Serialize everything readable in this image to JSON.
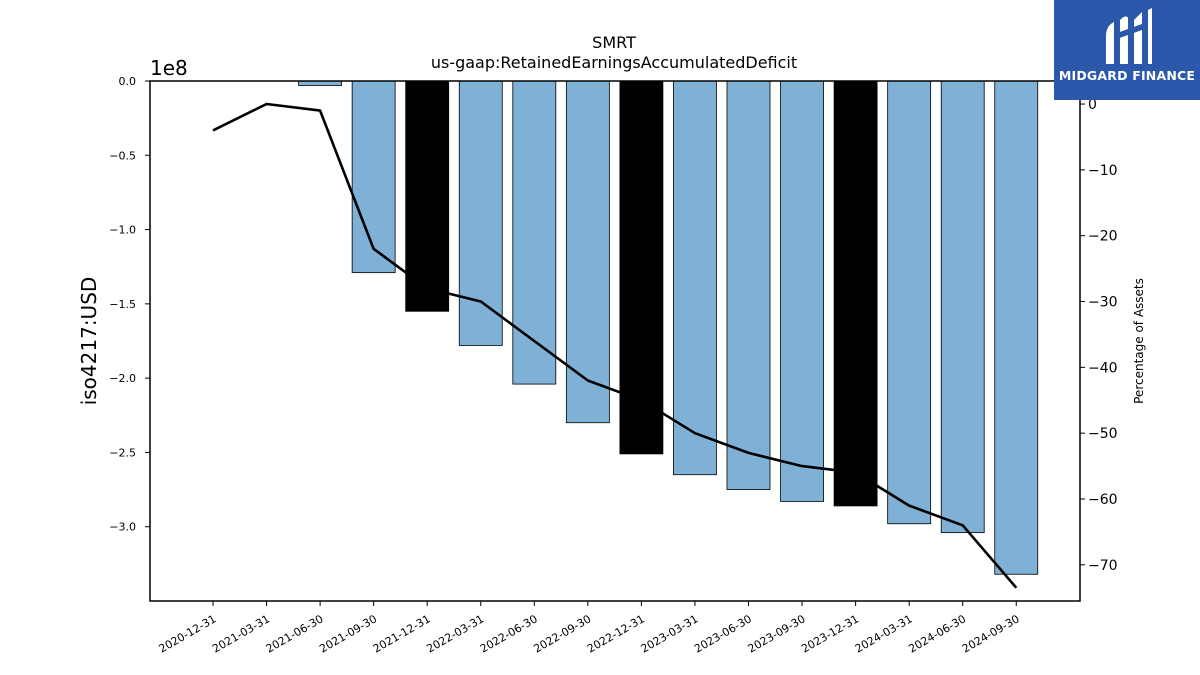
{
  "chart_data": {
    "type": "bar",
    "title": "SMRT",
    "subtitle": "us-gaap:RetainedEarningsAccumulatedDeficit",
    "ylabel": "iso4217:USD",
    "y_offset_label": "1e8",
    "y2label": "Percentage of Assets",
    "categories": [
      "2020-12-31",
      "2021-03-31",
      "2021-06-30",
      "2021-09-30",
      "2021-12-31",
      "2022-03-31",
      "2022-06-30",
      "2022-09-30",
      "2022-12-31",
      "2023-03-31",
      "2023-06-30",
      "2023-09-30",
      "2023-12-31",
      "2024-03-31",
      "2024-06-30",
      "2024-09-30"
    ],
    "series": [
      {
        "values": [
          0,
          0,
          -3000000,
          -129000000,
          -155000000,
          -178000000,
          -204000000,
          -230000000,
          -251000000,
          -265000000,
          -275000000,
          -283000000,
          -286000000,
          -298000000,
          -304000000,
          -332000000
        ],
        "highlight": [
          false,
          false,
          false,
          false,
          true,
          false,
          false,
          false,
          true,
          false,
          false,
          false,
          true,
          false,
          false,
          false
        ],
        "color": "#7fb0d5",
        "highlight_color": "#000000"
      },
      {
        "axis": "right",
        "values": [
          -4,
          0,
          -1,
          -22,
          -28,
          -30,
          -36,
          -42,
          -45,
          -50,
          -53,
          -55,
          -56,
          -61,
          -64,
          -73.5
        ],
        "color": "#000000"
      }
    ],
    "ylim": [
      -350000000,
      0
    ],
    "yticks": [
      0,
      -50000000,
      -100000000,
      -150000000,
      -200000000,
      -250000000,
      -300000000
    ],
    "yticklabels": [
      "0.0",
      "−0.5",
      "−1.0",
      "−1.5",
      "−2.0",
      "−2.5",
      "−3.0"
    ],
    "y2lim": [
      -75.5,
      3.5
    ],
    "y2ticks": [
      0,
      -10,
      -20,
      -30,
      -40,
      -50,
      -60,
      -70
    ],
    "y2ticklabels": [
      "0",
      "−10",
      "−20",
      "−30",
      "−40",
      "−50",
      "−60",
      "−70"
    ],
    "grid": false,
    "legend": "none"
  },
  "logo": {
    "text": "MIDGARD FINANCE"
  }
}
